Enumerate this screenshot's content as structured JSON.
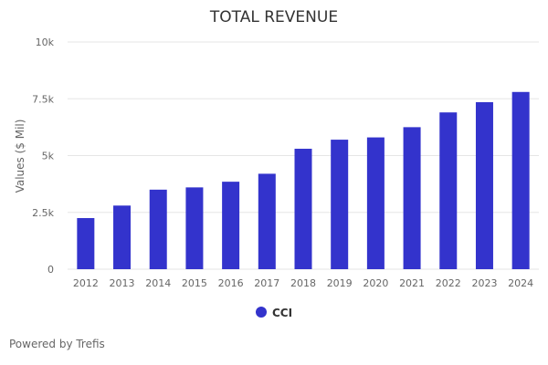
{
  "chart_data": {
    "type": "bar",
    "title": "TOTAL REVENUE",
    "xlabel": "",
    "ylabel": "Values ($ Mil)",
    "categories": [
      "2012",
      "2013",
      "2014",
      "2015",
      "2016",
      "2017",
      "2018",
      "2019",
      "2020",
      "2021",
      "2022",
      "2023",
      "2024"
    ],
    "series": [
      {
        "name": "CCI",
        "color": "#3333cc",
        "values": [
          2250,
          2800,
          3500,
          3600,
          3850,
          4200,
          5300,
          5700,
          5800,
          6250,
          6900,
          7350,
          7800
        ]
      }
    ],
    "ylim": [
      0,
      10000
    ],
    "yticks": [
      {
        "value": 0,
        "label": "0"
      },
      {
        "value": 2500,
        "label": "2.5k"
      },
      {
        "value": 5000,
        "label": "5k"
      },
      {
        "value": 7500,
        "label": "7.5k"
      },
      {
        "value": 10000,
        "label": "10k"
      }
    ],
    "grid": true,
    "legend": "bottom-center"
  },
  "credits": "Powered by Trefis"
}
